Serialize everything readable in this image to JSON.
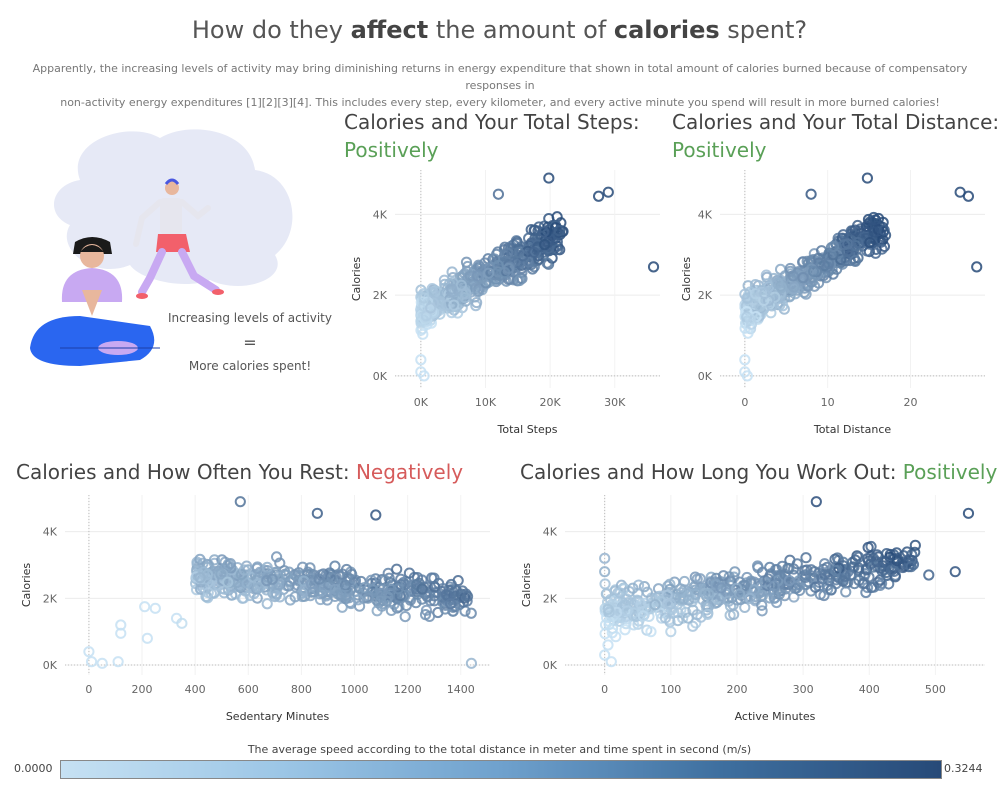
{
  "header": {
    "title_parts": [
      "How do they ",
      "affect",
      " the amount of ",
      "calories",
      " spent?"
    ],
    "subtitle_line1": "Apparently, the increasing levels of activity may bring diminishing returns in energy expenditure that shown in total amount of calories burned because of compensatory responses in",
    "subtitle_line2": "non-activity energy expenditures [1][2][3][4]. This includes every step, every kilometer, and every active minute you spend will result in more burned calories!"
  },
  "illustration": {
    "line1": "Increasing levels of activity",
    "line2": "=",
    "line3": "More calories spent!"
  },
  "colors": {
    "positive": "#5aa057",
    "negative": "#d65b5b",
    "scale_low": "#c6e1f3",
    "scale_high": "#274a78"
  },
  "legend": {
    "title": "The average speed according to the total distance in meter and time spent in second (m/s)",
    "min": "0.0000",
    "max": "0.3244"
  },
  "chart_data": [
    {
      "type": "scatter",
      "title": "Calories and Your Total Steps:",
      "verdict": "Positively",
      "xlabel": "Total Steps",
      "ylabel": "Calories",
      "xlim": [
        -4000,
        37000
      ],
      "ylim": [
        -300,
        5100
      ],
      "xticks": [
        0,
        10000,
        20000,
        30000
      ],
      "xtick_labels": [
        "0K",
        "10K",
        "20K",
        "30K"
      ],
      "yticks": [
        0,
        2000,
        4000
      ],
      "ytick_labels": [
        "0K",
        "2K",
        "4K"
      ],
      "trend": {
        "x0": 0,
        "y0": 1600,
        "x1": 22000,
        "y1": 3500
      },
      "x_spread": [
        0,
        22000
      ],
      "noise": 450,
      "points": [
        [
          19800,
          4900
        ],
        [
          29000,
          4550
        ],
        [
          27500,
          4450
        ],
        [
          36000,
          2700
        ],
        [
          12000,
          4500
        ],
        [
          0,
          100
        ],
        [
          500,
          0
        ],
        [
          0,
          400
        ]
      ]
    },
    {
      "type": "scatter",
      "title": "Calories and Your Total Distance:",
      "verdict": "Positively",
      "xlabel": "Total Distance",
      "ylabel": "Calories",
      "xlim": [
        -3,
        29
      ],
      "ylim": [
        -300,
        5100
      ],
      "xticks": [
        0,
        10,
        20
      ],
      "xtick_labels": [
        "0",
        "10",
        "20"
      ],
      "yticks": [
        0,
        2000,
        4000
      ],
      "ytick_labels": [
        "0K",
        "2K",
        "4K"
      ],
      "trend": {
        "x0": 0,
        "y0": 1600,
        "x1": 17,
        "y1": 3700
      },
      "x_spread": [
        0,
        17
      ],
      "noise": 450,
      "points": [
        [
          14.8,
          4900
        ],
        [
          26,
          4550
        ],
        [
          27,
          4450
        ],
        [
          28,
          2700
        ],
        [
          8,
          4500
        ],
        [
          0,
          100
        ],
        [
          0.3,
          0
        ],
        [
          0,
          400
        ]
      ]
    },
    {
      "type": "scatter",
      "title": "Calories and How Often You Rest:",
      "verdict": "Negatively",
      "xlabel": "Sedentary Minutes",
      "ylabel": "Calories",
      "xlim": [
        -90,
        1510
      ],
      "ylim": [
        -300,
        5100
      ],
      "xticks": [
        0,
        200,
        400,
        600,
        800,
        1000,
        1200,
        1400
      ],
      "xtick_labels": [
        "0",
        "200",
        "400",
        "600",
        "800",
        "1000",
        "1200",
        "1400"
      ],
      "yticks": [
        0,
        2000,
        4000
      ],
      "ytick_labels": [
        "0K",
        "2K",
        "4K"
      ],
      "trend": {
        "x0": 400,
        "y0": 2700,
        "x1": 1440,
        "y1": 2000
      },
      "x_spread": [
        400,
        1440
      ],
      "noise": 550,
      "points": [
        [
          0,
          400
        ],
        [
          10,
          100
        ],
        [
          50,
          50
        ],
        [
          110,
          100
        ],
        [
          120,
          1200
        ],
        [
          120,
          950
        ],
        [
          210,
          1750
        ],
        [
          220,
          800
        ],
        [
          250,
          1700
        ],
        [
          330,
          1400
        ],
        [
          350,
          1250
        ],
        [
          570,
          4900
        ],
        [
          860,
          4550
        ],
        [
          1440,
          50
        ],
        [
          1080,
          4500
        ]
      ]
    },
    {
      "type": "scatter",
      "title": "Calories and How Long You Work Out:",
      "verdict": "Positively",
      "xlabel": "Active Minutes",
      "ylabel": "Calories",
      "xlim": [
        -60,
        575
      ],
      "ylim": [
        -300,
        5100
      ],
      "xticks": [
        0,
        100,
        200,
        300,
        400,
        500
      ],
      "xtick_labels": [
        "0",
        "100",
        "200",
        "300",
        "400",
        "500"
      ],
      "yticks": [
        0,
        2000,
        4000
      ],
      "ytick_labels": [
        "0K",
        "2K",
        "4K"
      ],
      "trend": {
        "x0": 0,
        "y0": 1600,
        "x1": 450,
        "y1": 3000
      },
      "x_spread": [
        0,
        470
      ],
      "noise": 600,
      "points": [
        [
          320,
          4900
        ],
        [
          550,
          4550
        ],
        [
          0,
          3200
        ],
        [
          0,
          2800
        ],
        [
          5,
          600
        ],
        [
          10,
          100
        ],
        [
          0,
          300
        ],
        [
          70,
          1000
        ],
        [
          100,
          1000
        ],
        [
          530,
          2800
        ],
        [
          490,
          2700
        ]
      ]
    }
  ]
}
